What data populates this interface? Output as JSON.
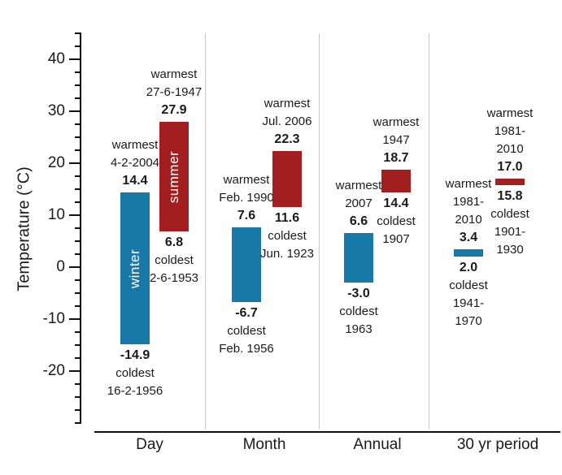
{
  "chart_data": {
    "type": "bar",
    "subtype": "floating-range-bars",
    "title": "",
    "ylabel": "Temperature (°C)",
    "ylim": [
      -30,
      45
    ],
    "yticks_major": [
      -20,
      -10,
      0,
      10,
      20,
      30,
      40
    ],
    "ytick_minor_step": 2.5,
    "grid": "vertical-category-separators",
    "legend": "none",
    "categories": [
      "Day",
      "Month",
      "Annual",
      "30 yr period"
    ],
    "colors": {
      "cold": "#1878a8",
      "warm": "#a31e1e"
    },
    "bars": [
      {
        "category": "Day",
        "type": "cold",
        "min": -14.9,
        "max": 14.4,
        "in_bar_label": "winter",
        "above": [
          "warmest",
          "4-2-2004"
        ],
        "max_label": "14.4",
        "min_label": "-14.9",
        "below": [
          "coldest",
          "16-2-1956"
        ]
      },
      {
        "category": "Day",
        "type": "warm",
        "min": 6.8,
        "max": 27.9,
        "in_bar_label": "summer",
        "above": [
          "warmest",
          "27-6-1947"
        ],
        "max_label": "27.9",
        "min_label": "6.8",
        "below": [
          "coldest",
          "2-6-1953"
        ]
      },
      {
        "category": "Month",
        "type": "cold",
        "min": -6.7,
        "max": 7.6,
        "in_bar_label": "",
        "above": [
          "warmest",
          "Feb. 1990"
        ],
        "max_label": "7.6",
        "min_label": "-6.7",
        "below": [
          "coldest",
          "Feb. 1956"
        ]
      },
      {
        "category": "Month",
        "type": "warm",
        "min": 11.6,
        "max": 22.3,
        "in_bar_label": "",
        "above": [
          "warmest",
          "Jul. 2006"
        ],
        "max_label": "22.3",
        "min_label": "11.6",
        "below": [
          "coldest",
          "Jun. 1923"
        ]
      },
      {
        "category": "Annual",
        "type": "cold",
        "min": -3.0,
        "max": 6.6,
        "in_bar_label": "",
        "above": [
          "warmest",
          "2007"
        ],
        "max_label": "6.6",
        "min_label": "-3.0",
        "below": [
          "coldest",
          "1963"
        ]
      },
      {
        "category": "Annual",
        "type": "warm",
        "min": 14.4,
        "max": 18.7,
        "in_bar_label": "",
        "above": [
          "warmest",
          "1947"
        ],
        "max_label": "18.7",
        "min_label": "14.4",
        "below": [
          "coldest",
          "1907"
        ]
      },
      {
        "category": "30 yr period",
        "type": "cold",
        "min": 2.0,
        "max": 3.4,
        "in_bar_label": "",
        "above": [
          "warmest",
          "1981-",
          "2010"
        ],
        "max_label": "3.4",
        "min_label": "2.0",
        "below": [
          "coldest",
          "1941-",
          "1970"
        ]
      },
      {
        "category": "30 yr period",
        "type": "warm",
        "min": 15.8,
        "max": 17.0,
        "in_bar_label": "",
        "above": [
          "warmest",
          "1981-",
          "2010"
        ],
        "max_label": "17.0",
        "min_label": "15.8",
        "below": [
          "coldest",
          "1901-",
          "1930"
        ]
      }
    ]
  }
}
